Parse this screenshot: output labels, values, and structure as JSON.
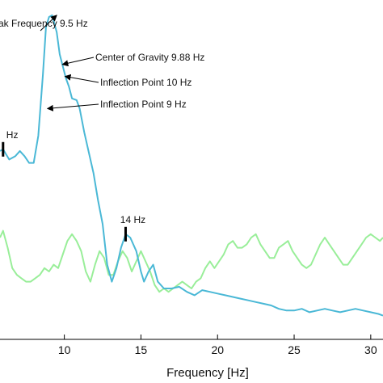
{
  "chart_data": {
    "type": "line",
    "xlabel": "Frequency [Hz]",
    "ylabel": "",
    "xlim": [
      5.8,
      30.8
    ],
    "ylim": [
      0,
      1
    ],
    "grid": false,
    "x_ticks": [
      "10",
      "15",
      "20",
      "25",
      "30"
    ],
    "x_tick_values": [
      10,
      15,
      20,
      25,
      30
    ],
    "series": [
      {
        "color": "#4ab8d6",
        "x": [
          5.8,
          6.0,
          6.4,
          6.8,
          7.1,
          7.4,
          7.7,
          8.0,
          8.3,
          8.6,
          8.8,
          9.0,
          9.2,
          9.5,
          9.7,
          9.9,
          10.1,
          10.3,
          10.5,
          10.8,
          11.0,
          11.3,
          11.6,
          11.9,
          12.2,
          12.5,
          12.8,
          13.1,
          13.4,
          13.7,
          14.0,
          14.3,
          14.7,
          15.0,
          15.2,
          15.5,
          15.8,
          16.1,
          16.5,
          17.0,
          17.5,
          18.0,
          18.5,
          19.0,
          19.5,
          20.0,
          20.5,
          21.0,
          21.5,
          22.0,
          22.5,
          23.0,
          23.5,
          24.0,
          24.5,
          25.0,
          25.5,
          26.0,
          26.5,
          27.0,
          27.5,
          28.0,
          28.5,
          29.0,
          29.5,
          30.0,
          30.5,
          30.8
        ],
        "y": [
          0.555,
          0.56,
          0.53,
          0.54,
          0.555,
          0.54,
          0.52,
          0.52,
          0.6,
          0.78,
          0.92,
          0.95,
          0.955,
          0.905,
          0.84,
          0.805,
          0.77,
          0.745,
          0.71,
          0.705,
          0.68,
          0.61,
          0.55,
          0.49,
          0.41,
          0.34,
          0.22,
          0.17,
          0.21,
          0.27,
          0.31,
          0.3,
          0.26,
          0.2,
          0.17,
          0.2,
          0.22,
          0.17,
          0.15,
          0.15,
          0.155,
          0.14,
          0.13,
          0.145,
          0.14,
          0.135,
          0.13,
          0.125,
          0.12,
          0.115,
          0.11,
          0.105,
          0.1,
          0.09,
          0.085,
          0.085,
          0.09,
          0.08,
          0.085,
          0.09,
          0.085,
          0.08,
          0.085,
          0.09,
          0.085,
          0.08,
          0.075,
          0.07
        ]
      },
      {
        "color": "#99ee99",
        "x": [
          5.8,
          6.0,
          6.3,
          6.6,
          6.9,
          7.2,
          7.5,
          7.8,
          8.1,
          8.4,
          8.7,
          9.0,
          9.3,
          9.6,
          9.9,
          10.2,
          10.5,
          10.8,
          11.1,
          11.4,
          11.7,
          12.0,
          12.3,
          12.6,
          12.9,
          13.2,
          13.5,
          13.8,
          14.1,
          14.4,
          14.7,
          15.0,
          15.3,
          15.6,
          15.9,
          16.2,
          16.5,
          16.8,
          17.1,
          17.4,
          17.7,
          18.0,
          18.3,
          18.6,
          18.9,
          19.2,
          19.5,
          19.8,
          20.1,
          20.4,
          20.7,
          21.0,
          21.3,
          21.6,
          21.9,
          22.2,
          22.5,
          22.8,
          23.1,
          23.4,
          23.7,
          24.0,
          24.3,
          24.6,
          24.9,
          25.2,
          25.5,
          25.8,
          26.1,
          26.4,
          26.7,
          27.0,
          27.3,
          27.6,
          27.9,
          28.2,
          28.5,
          28.8,
          29.1,
          29.4,
          29.7,
          30.0,
          30.3,
          30.6,
          30.8
        ],
        "y": [
          0.3,
          0.32,
          0.27,
          0.21,
          0.19,
          0.18,
          0.17,
          0.17,
          0.18,
          0.19,
          0.21,
          0.2,
          0.22,
          0.21,
          0.25,
          0.29,
          0.31,
          0.29,
          0.26,
          0.2,
          0.17,
          0.22,
          0.26,
          0.24,
          0.19,
          0.19,
          0.23,
          0.26,
          0.24,
          0.2,
          0.23,
          0.26,
          0.23,
          0.2,
          0.16,
          0.14,
          0.15,
          0.14,
          0.15,
          0.16,
          0.17,
          0.16,
          0.15,
          0.17,
          0.18,
          0.21,
          0.23,
          0.21,
          0.23,
          0.25,
          0.28,
          0.29,
          0.27,
          0.27,
          0.28,
          0.3,
          0.31,
          0.28,
          0.26,
          0.24,
          0.24,
          0.27,
          0.28,
          0.29,
          0.26,
          0.24,
          0.22,
          0.21,
          0.22,
          0.25,
          0.28,
          0.3,
          0.28,
          0.26,
          0.24,
          0.22,
          0.22,
          0.24,
          0.26,
          0.28,
          0.3,
          0.31,
          0.3,
          0.29,
          0.3
        ]
      }
    ],
    "annotations": [
      {
        "text": "ak Frequency 9.5 Hz",
        "x": 9.5,
        "y": 0.955
      },
      {
        "text": "Center of Gravity 9.88 Hz",
        "x": 9.88,
        "y": 0.81
      },
      {
        "text": "Inflection Point 10 Hz",
        "x": 10.05,
        "y": 0.775
      },
      {
        "text": "Inflection Point 9 Hz",
        "x": 8.9,
        "y": 0.68
      }
    ],
    "markers": [
      {
        "text": "Hz",
        "x": 6.0,
        "y": 0.56
      },
      {
        "text": "14 Hz",
        "x": 14.0,
        "y": 0.31
      }
    ]
  }
}
